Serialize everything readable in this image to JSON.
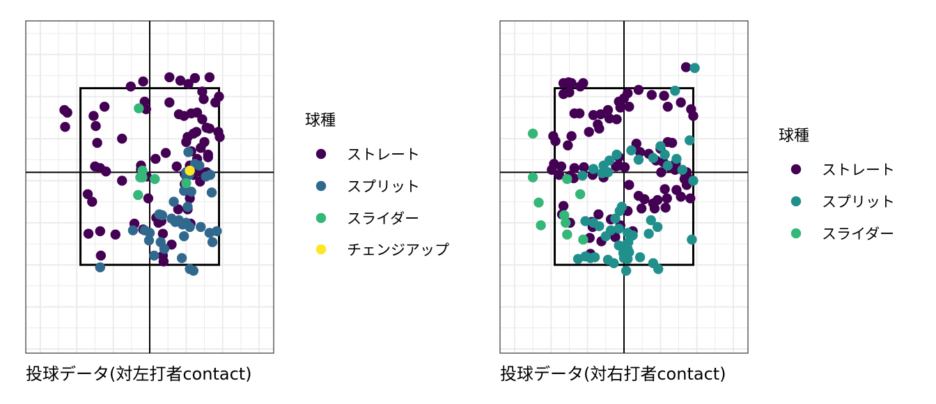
{
  "colors": {
    "ストレート": "#440154",
    "スプリット": "#31688e",
    "スライダー": "#35b779",
    "チェンジアップ": "#fde725",
    "スプリット_right": "#21908c"
  },
  "chart_data": [
    {
      "type": "scatter",
      "xlabel": "投球データ(対左打者contact)",
      "ylabel": "",
      "xlim": [
        -1.7,
        1.7
      ],
      "ylim": [
        0.45,
        4.4
      ],
      "grid": true,
      "strike_zone": {
        "x": [
          -0.95,
          0.95
        ],
        "y": [
          1.5,
          3.6
        ]
      },
      "crosshair": {
        "x": 0,
        "y": 2.6
      },
      "legend": {
        "title": "球種",
        "position": "right",
        "entries": [
          "ストレート",
          "スプリット",
          "スライダー",
          "チェンジアップ"
        ]
      },
      "series": [
        {
          "name": "ストレート",
          "x": [
            -1.17,
            -1.13,
            -1.16,
            -0.77,
            -0.62,
            -0.74,
            -0.72,
            -0.38,
            -0.26,
            -0.09,
            -0.07,
            -0.05,
            0.27,
            0.42,
            0.53,
            0.62,
            0.74,
            0.95,
            0.9,
            0.72,
            0.82,
            0.27,
            0.4,
            0.47,
            0.57,
            0.65,
            0.72,
            0.6,
            0.78,
            0.94,
            0.52,
            0.75,
            0.5,
            0.37,
            0.22,
            0.08,
            0.82,
            0.96,
            0.64,
            0.7,
            0.8,
            0.63,
            0.56,
            0.78,
            0.55,
            0.48,
            0.59,
            0.72,
            0.65,
            0.57,
            0.8,
            -0.75,
            -0.68,
            -0.6,
            -0.79,
            -0.38,
            -0.12,
            -0.12,
            -0.04,
            0.09,
            0.12,
            0.16,
            0.39,
            0.52,
            0.48,
            0.69,
            0.55,
            -0.84,
            -0.68,
            -0.47,
            -0.09,
            -0.21,
            -0.02,
            0.18,
            0.3,
            0.56,
            0.6,
            0.64,
            0.18,
            -0.67,
            0.19,
            -0.85
          ],
          "y": [
            3.34,
            3.31,
            3.14,
            3.27,
            3.38,
            3.15,
            2.95,
            3.0,
            3.62,
            3.68,
            3.44,
            3.35,
            3.73,
            3.69,
            3.65,
            3.72,
            3.47,
            3.5,
            3.43,
            3.56,
            3.73,
            3.43,
            3.29,
            3.27,
            3.3,
            3.31,
            3.23,
            3.06,
            3.13,
            3.08,
            3.02,
            2.96,
            2.96,
            2.67,
            2.83,
            2.76,
            3.12,
            3.02,
            3.08,
            2.89,
            2.78,
            2.63,
            2.6,
            2.6,
            2.68,
            2.46,
            2.6,
            2.59,
            2.76,
            2.85,
            2.81,
            2.67,
            2.65,
            2.61,
            2.25,
            2.5,
            2.68,
            2.63,
            2.55,
            2.06,
            2.0,
            2.02,
            2.16,
            2.16,
            2.58,
            2.49,
            2.29,
            1.87,
            1.9,
            1.86,
            1.92,
            1.99,
            2.29,
            1.87,
            1.74,
            1.99,
            2.57,
            2.63,
            1.61,
            1.61,
            1.54,
            2.34
          ]
        },
        {
          "name": "スプリット",
          "x": [
            -0.68,
            -0.23,
            -0.07,
            0.0,
            0.15,
            0.2,
            0.4,
            0.47,
            0.5,
            0.53,
            0.54,
            0.52,
            0.62,
            0.68,
            0.77,
            0.83,
            0.85,
            0.57,
            0.35,
            0.45,
            0.55,
            0.7,
            0.82,
            0.86,
            0.92,
            0.06,
            -0.01,
            0.17,
            0.3,
            0.47,
            0.55,
            0.6,
            0.44,
            0.5,
            0.13,
            0.33,
            0.5
          ],
          "y": [
            1.47,
            1.91,
            1.91,
            1.88,
            1.77,
            1.69,
            2.03,
            2.38,
            2.55,
            2.84,
            2.57,
            2.19,
            2.7,
            2.68,
            2.55,
            2.57,
            2.36,
            2.37,
            2.01,
            1.98,
            1.95,
            1.95,
            1.88,
            1.77,
            1.9,
            1.61,
            1.79,
            2.09,
            2.05,
            1.84,
            1.45,
            1.43,
            1.58,
            2.0,
            2.1,
            2.25,
            2.6
          ]
        },
        {
          "name": "スライダー",
          "x": [
            -0.15,
            -0.1,
            -0.16,
            0.07,
            -0.13,
            -0.1,
            0.5
          ],
          "y": [
            3.36,
            2.54,
            2.33,
            2.52,
            2.54,
            2.62,
            2.47
          ]
        },
        {
          "name": "チェンジアップ",
          "x": [
            0.55
          ],
          "y": [
            2.62
          ]
        }
      ]
    },
    {
      "type": "scatter",
      "xlabel": "投球データ(対右打者contact)",
      "ylabel": "",
      "xlim": [
        -1.7,
        1.7
      ],
      "ylim": [
        0.45,
        4.4
      ],
      "grid": true,
      "strike_zone": {
        "x": [
          -0.95,
          0.95
        ],
        "y": [
          1.5,
          3.6
        ]
      },
      "crosshair": {
        "x": 0,
        "y": 2.6
      },
      "legend": {
        "title": "球種",
        "position": "right",
        "entries": [
          "ストレート",
          "スプリット",
          "スライダー"
        ]
      },
      "series": [
        {
          "name": "ストレート",
          "x": [
            -0.83,
            -0.76,
            -0.72,
            -0.6,
            -0.56,
            -0.75,
            -0.83,
            -0.68,
            -0.97,
            -0.72,
            -0.61,
            -0.42,
            -0.32,
            -0.2,
            -0.05,
            0.05,
            0.2,
            0.38,
            0.55,
            0.6,
            0.78,
            0.85,
            0.92,
            0.95,
            -0.94,
            -0.96,
            -0.48,
            -0.34,
            -0.22,
            -0.07,
            0.0,
            -0.36,
            -0.1,
            0.07,
            0.17,
            0.22,
            0.34,
            0.5,
            0.6,
            0.66,
            0.44,
            0.54,
            0.7,
            0.86,
            -0.74,
            -0.55,
            -0.43,
            -0.28,
            -0.11,
            -0.07,
            -0.07,
            0.01,
            0.07,
            0.2,
            0.28,
            0.4,
            0.51,
            0.63,
            0.71,
            0.82,
            0.86,
            0.91,
            0.88,
            0.83,
            0.72,
            0.78,
            0.59,
            0.57,
            0.42,
            0.24,
            0.05,
            -0.05,
            -0.18,
            -0.31,
            -0.46,
            -0.83,
            -0.85,
            -0.74,
            -0.47,
            -0.44,
            -0.35,
            -0.43,
            -0.12,
            0.12,
            0.46,
            0.56,
            -0.69,
            -0.68,
            -0.77,
            -0.86,
            -0.99,
            -0.89
          ],
          "y": [
            3.66,
            3.67,
            3.66,
            3.62,
            3.66,
            3.55,
            3.53,
            3.3,
            3.03,
            3.03,
            3.3,
            3.28,
            3.29,
            3.24,
            3.37,
            3.54,
            3.58,
            3.52,
            3.51,
            3.38,
            3.43,
            3.85,
            3.35,
            3.27,
            2.97,
            2.7,
            3.08,
            3.12,
            3.34,
            3.44,
            3.48,
            3.17,
            3.23,
            3.38,
            2.94,
            2.84,
            2.82,
            2.88,
            2.96,
            2.95,
            2.74,
            2.72,
            2.63,
            2.6,
            2.56,
            2.66,
            2.57,
            2.54,
            2.67,
            2.68,
            2.78,
            2.66,
            2.45,
            2.32,
            2.28,
            2.23,
            2.6,
            2.66,
            2.71,
            2.61,
            2.45,
            2.29,
            2.53,
            2.52,
            2.39,
            2.31,
            2.29,
            2.18,
            2.17,
            2.17,
            2.14,
            1.97,
            2.04,
            1.78,
            1.63,
            2.2,
            2.1,
            2.0,
            1.82,
            2.01,
            2.1,
            1.95,
            1.83,
            1.9,
            2.27,
            2.4,
            2.53,
            2.65,
            2.92,
            2.67,
            2.63,
            2.57
          ]
        },
        {
          "name": "スプリット",
          "x": [
            0.6,
            0.56,
            0.7,
            0.97,
            0.9,
            0.93,
            0.95,
            0.8,
            0.72,
            -0.22,
            -0.57,
            -0.28,
            -0.42,
            -0.3,
            -0.2,
            -0.1,
            0.1,
            0.2,
            0.4,
            0.5,
            -0.63,
            -0.53,
            -0.46,
            -0.4,
            -0.53,
            -0.42,
            -0.34,
            -0.25,
            -0.18,
            -0.12,
            -0.06,
            -0.03,
            -0.07,
            0.03,
            0.07,
            0.05,
            0.06,
            0.12,
            0.34,
            0.46,
            0.37,
            0.0,
            0.05,
            0.22,
            0.4,
            0.47,
            -0.14,
            0.03,
            -0.22,
            -0.01,
            -0.07,
            0.05
          ],
          "y": [
            2.68,
            2.81,
            3.57,
            3.84,
            2.98,
            1.8,
            2.5,
            2.63,
            2.76,
            2.6,
            2.56,
            2.68,
            2.64,
            2.59,
            2.74,
            2.81,
            2.86,
            2.75,
            2.77,
            2.91,
            1.57,
            1.6,
            1.58,
            1.59,
            2.02,
            2.0,
            1.96,
            1.84,
            1.91,
            2.05,
            2.14,
            2.19,
            1.93,
            1.74,
            1.65,
            1.69,
            1.77,
            1.85,
            1.87,
            1.95,
            2.03,
            1.58,
            1.57,
            1.59,
            1.52,
            1.45,
            1.52,
            1.43,
            1.56,
            1.64,
            1.73,
            1.88
          ]
        },
        {
          "name": "スライダー",
          "x": [
            -1.25,
            -1.25,
            -0.78,
            -1.17,
            -1.14,
            -0.8,
            -0.6,
            -0.82,
            -0.56,
            -0.78
          ],
          "y": [
            3.06,
            2.54,
            2.52,
            2.24,
            1.97,
            2.0,
            2.34,
            2.09,
            1.8,
            1.86
          ]
        }
      ]
    }
  ]
}
